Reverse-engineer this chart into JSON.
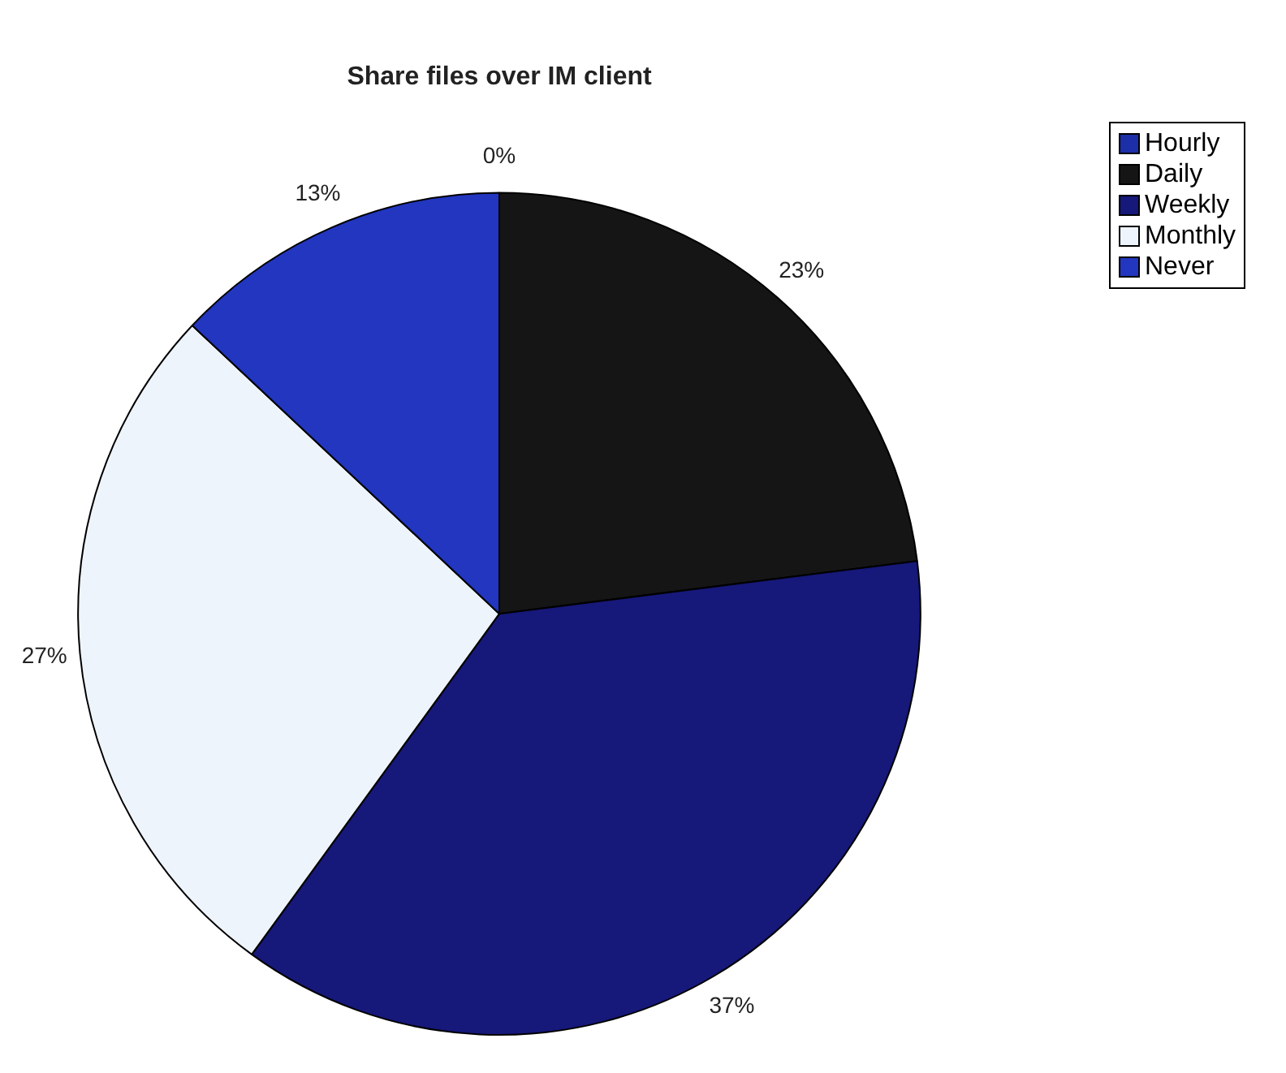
{
  "chart_data": {
    "type": "pie",
    "title": "Share files over IM client",
    "categories": [
      "Hourly",
      "Daily",
      "Weekly",
      "Monthly",
      "Never"
    ],
    "values": [
      0,
      23,
      37,
      27,
      13
    ],
    "colors": [
      "#1c2fa8",
      "#151515",
      "#16187a",
      "#eef4fb",
      "#2236c0"
    ],
    "value_labels": [
      "0%",
      "23%",
      "37%",
      "27%",
      "13%"
    ],
    "legend": "top right"
  }
}
